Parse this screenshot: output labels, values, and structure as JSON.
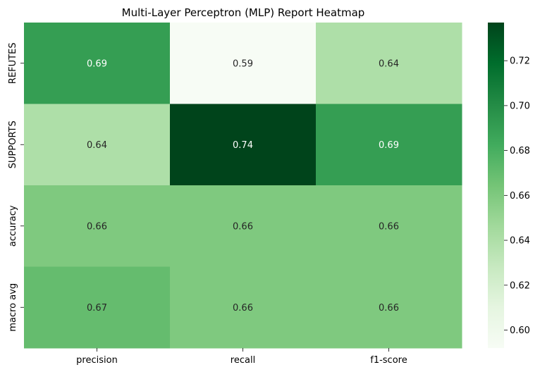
{
  "chart_data": {
    "type": "heatmap",
    "title": "Multi-Layer Perceptron (MLP) Report Heatmap",
    "columns": [
      "precision",
      "recall",
      "f1-score"
    ],
    "rows": [
      "REFUTES",
      "SUPPORTS",
      "accuracy",
      "macro avg"
    ],
    "values": [
      [
        0.69,
        0.59,
        0.64
      ],
      [
        0.64,
        0.74,
        0.69
      ],
      [
        0.66,
        0.66,
        0.66
      ],
      [
        0.67,
        0.66,
        0.66
      ]
    ],
    "value_labels": [
      [
        "0.69",
        "0.59",
        "0.64"
      ],
      [
        "0.64",
        "0.74",
        "0.69"
      ],
      [
        "0.66",
        "0.66",
        "0.66"
      ],
      [
        "0.67",
        "0.66",
        "0.66"
      ]
    ],
    "colormap": "Greens",
    "colorbar": {
      "range": [
        0.592,
        0.737
      ],
      "ticks": [
        0.6,
        0.62,
        0.64,
        0.66,
        0.68,
        0.7,
        0.72
      ],
      "tick_labels": [
        "0.60",
        "0.62",
        "0.64",
        "0.66",
        "0.68",
        "0.70",
        "0.72"
      ]
    },
    "xlabel": "",
    "ylabel": ""
  }
}
